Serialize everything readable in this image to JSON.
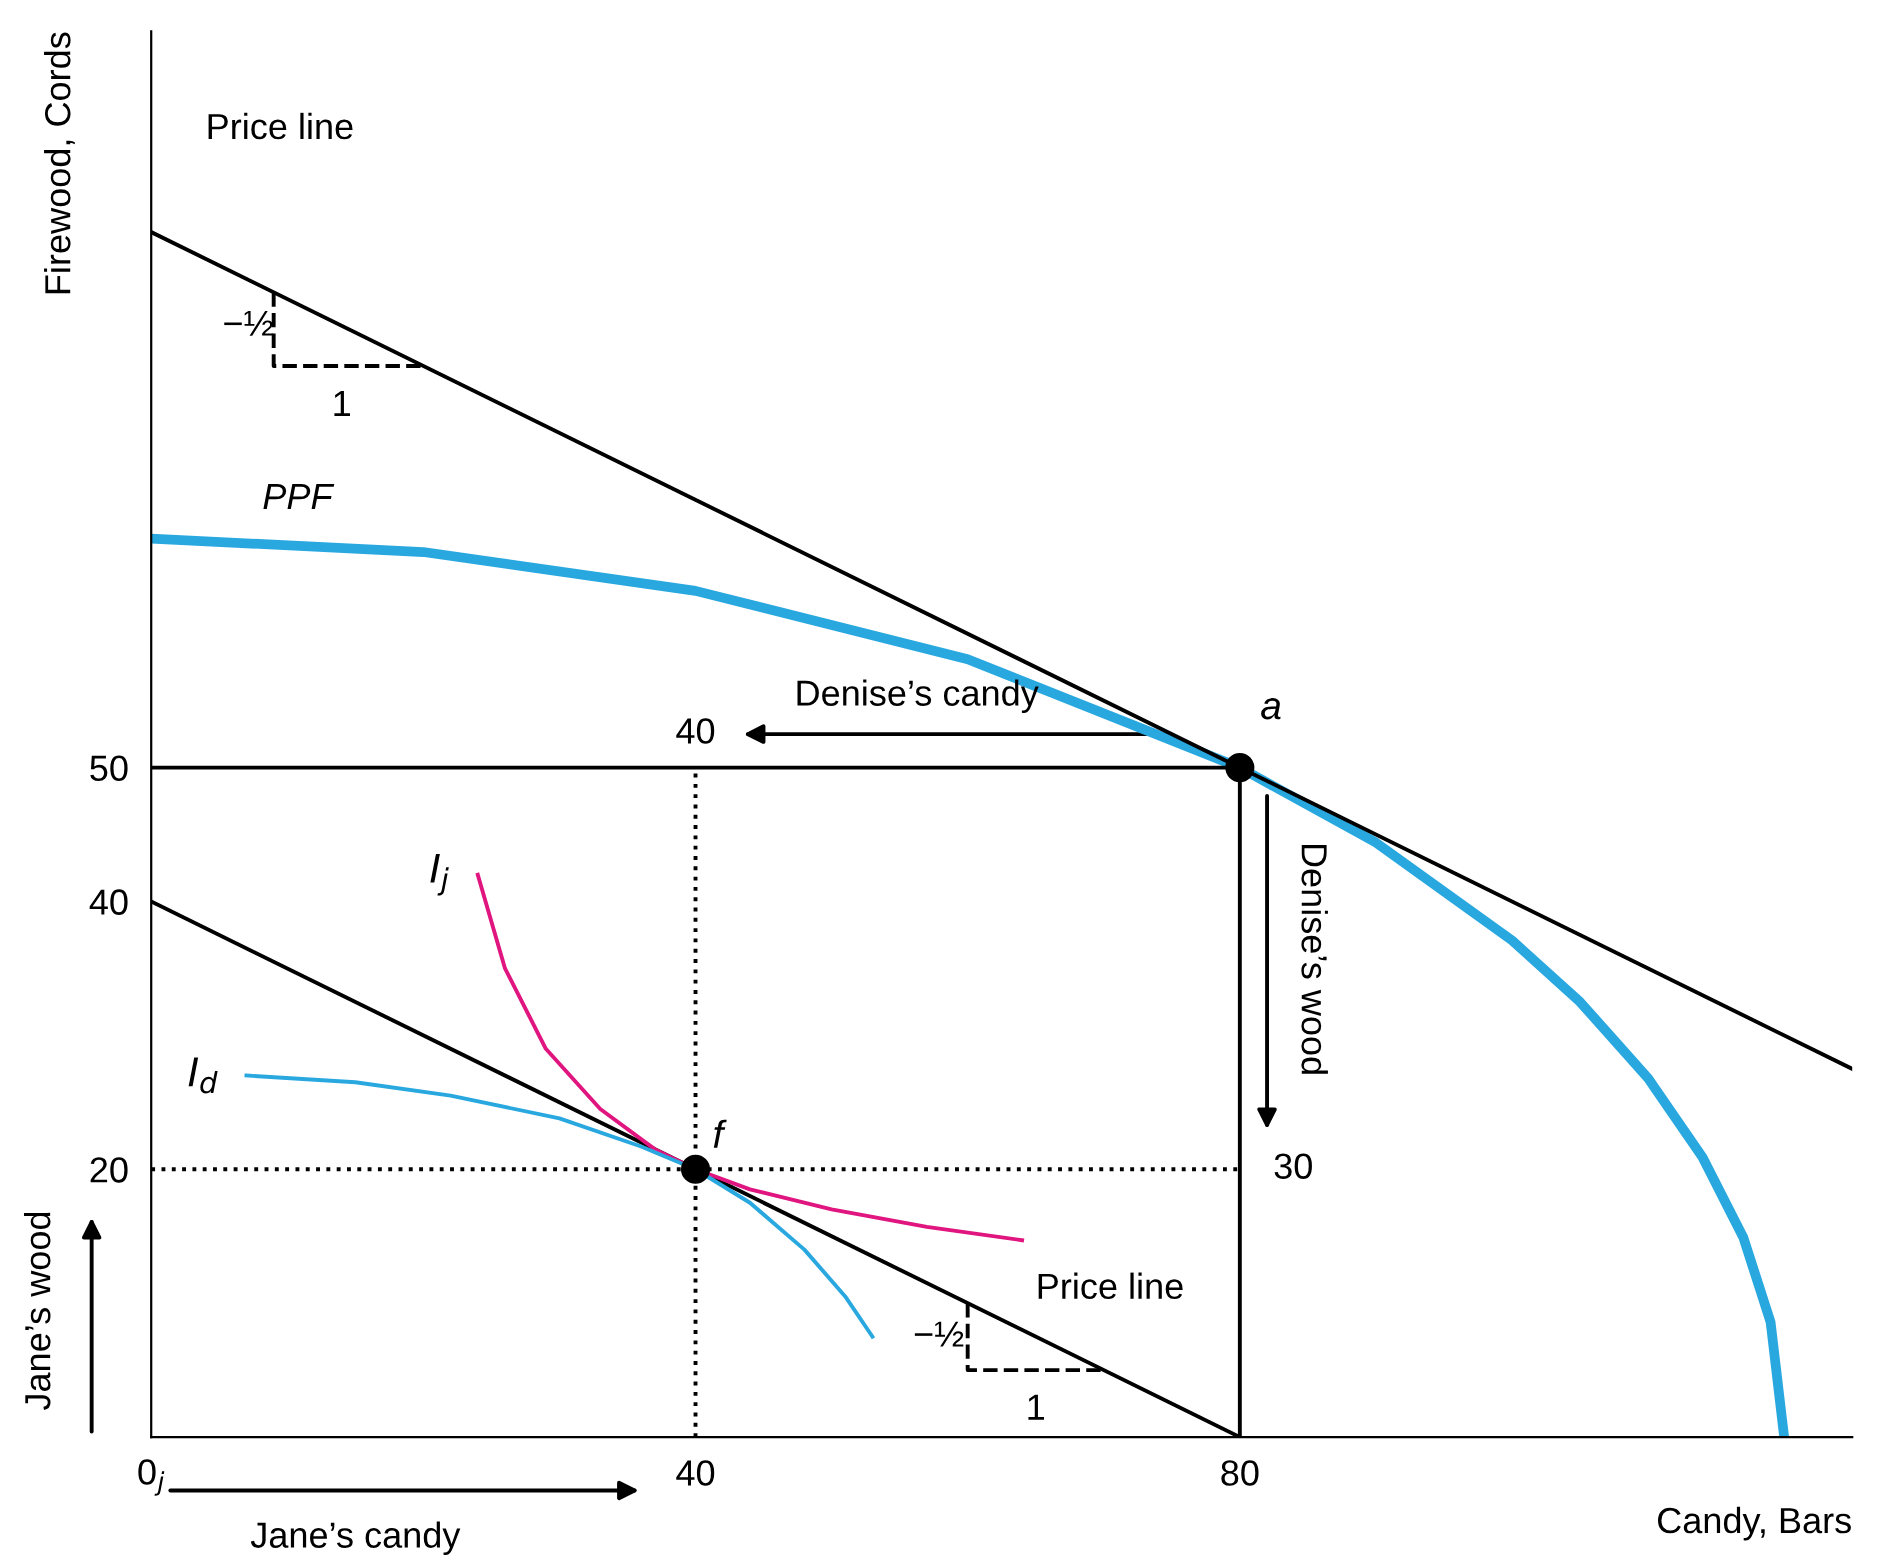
{
  "chart_data": {
    "type": "line",
    "xlabel": "Candy, Bars",
    "ylabel": "Firewood, Cords",
    "xlim": [
      0,
      125
    ],
    "ylim": [
      0,
      105
    ],
    "xticks": [
      {
        "value": 0,
        "label": "0$_{j}$"
      },
      40,
      80
    ],
    "yticks": [
      20,
      40,
      50
    ],
    "grid": false,
    "marker": "none",
    "series": [
      {
        "name": "PPF",
        "color": "#29a8e0",
        "x": [
          0,
          20,
          40,
          60,
          80,
          90,
          100,
          105,
          110,
          114,
          117,
          119,
          120
        ],
        "values": [
          67.1,
          66.1,
          63.2,
          58.1,
          50,
          44.4,
          37.1,
          32.5,
          26.8,
          20.9,
          14.9,
          8.6,
          0
        ]
      },
      {
        "color": "#000000",
        "x": [
          0,
          125
        ],
        "values": [
          90,
          27.5
        ]
      },
      {
        "color": "#000000",
        "x": [
          0,
          80
        ],
        "values": [
          40,
          0
        ]
      },
      {
        "color": "#000000",
        "x": [
          0,
          80
        ],
        "values": [
          50,
          50
        ]
      },
      {
        "color": "#000000",
        "x": [
          80,
          80
        ],
        "values": [
          0,
          50
        ]
      },
      {
        "color": "#000000",
        "line_style": "dotted",
        "x": [
          0,
          80
        ],
        "values": [
          20,
          20
        ]
      },
      {
        "color": "#000000",
        "line_style": "dotted",
        "x": [
          40,
          40
        ],
        "values": [
          0,
          50
        ]
      },
      {
        "color": "#000000",
        "line_style": "dashed",
        "x": [
          9,
          9,
          20
        ],
        "values": [
          85.5,
          80,
          80
        ]
      },
      {
        "color": "#000000",
        "line_style": "dashed",
        "x": [
          60,
          60,
          70
        ],
        "values": [
          10,
          5,
          5
        ]
      },
      {
        "name": "I$_{j}$",
        "color": "#e0157f",
        "x": [
          24,
          26,
          29,
          33,
          37,
          40,
          44,
          50,
          57,
          64
        ],
        "values": [
          42,
          35,
          29,
          24.5,
          21.5,
          20,
          18.5,
          17,
          15.7,
          14.7
        ]
      },
      {
        "name": "I$_{d}$",
        "color": "#29a8e0",
        "x": [
          7,
          15,
          22,
          30,
          36,
          40,
          44,
          48,
          51,
          53
        ],
        "values": [
          27,
          26.5,
          25.5,
          23.8,
          21.7,
          20,
          17.5,
          14,
          10.5,
          7.5
        ]
      },
      {
        "type": "scatter",
        "marker": "circle",
        "color": "#000000",
        "x": [
          80,
          40
        ],
        "values": [
          50,
          20
        ]
      }
    ],
    "annotations": [
      "Price line",
      "Price line",
      "−½",
      "1",
      "−½",
      "1",
      "a",
      "f",
      {
        "text": "40",
        "x": 40,
        "y": 50
      },
      {
        "text": "30",
        "x": 80,
        "y": 20
      },
      "Denise’s candy",
      "Denise’s wood",
      "Jane’s wood",
      "Jane’s candy"
    ]
  }
}
